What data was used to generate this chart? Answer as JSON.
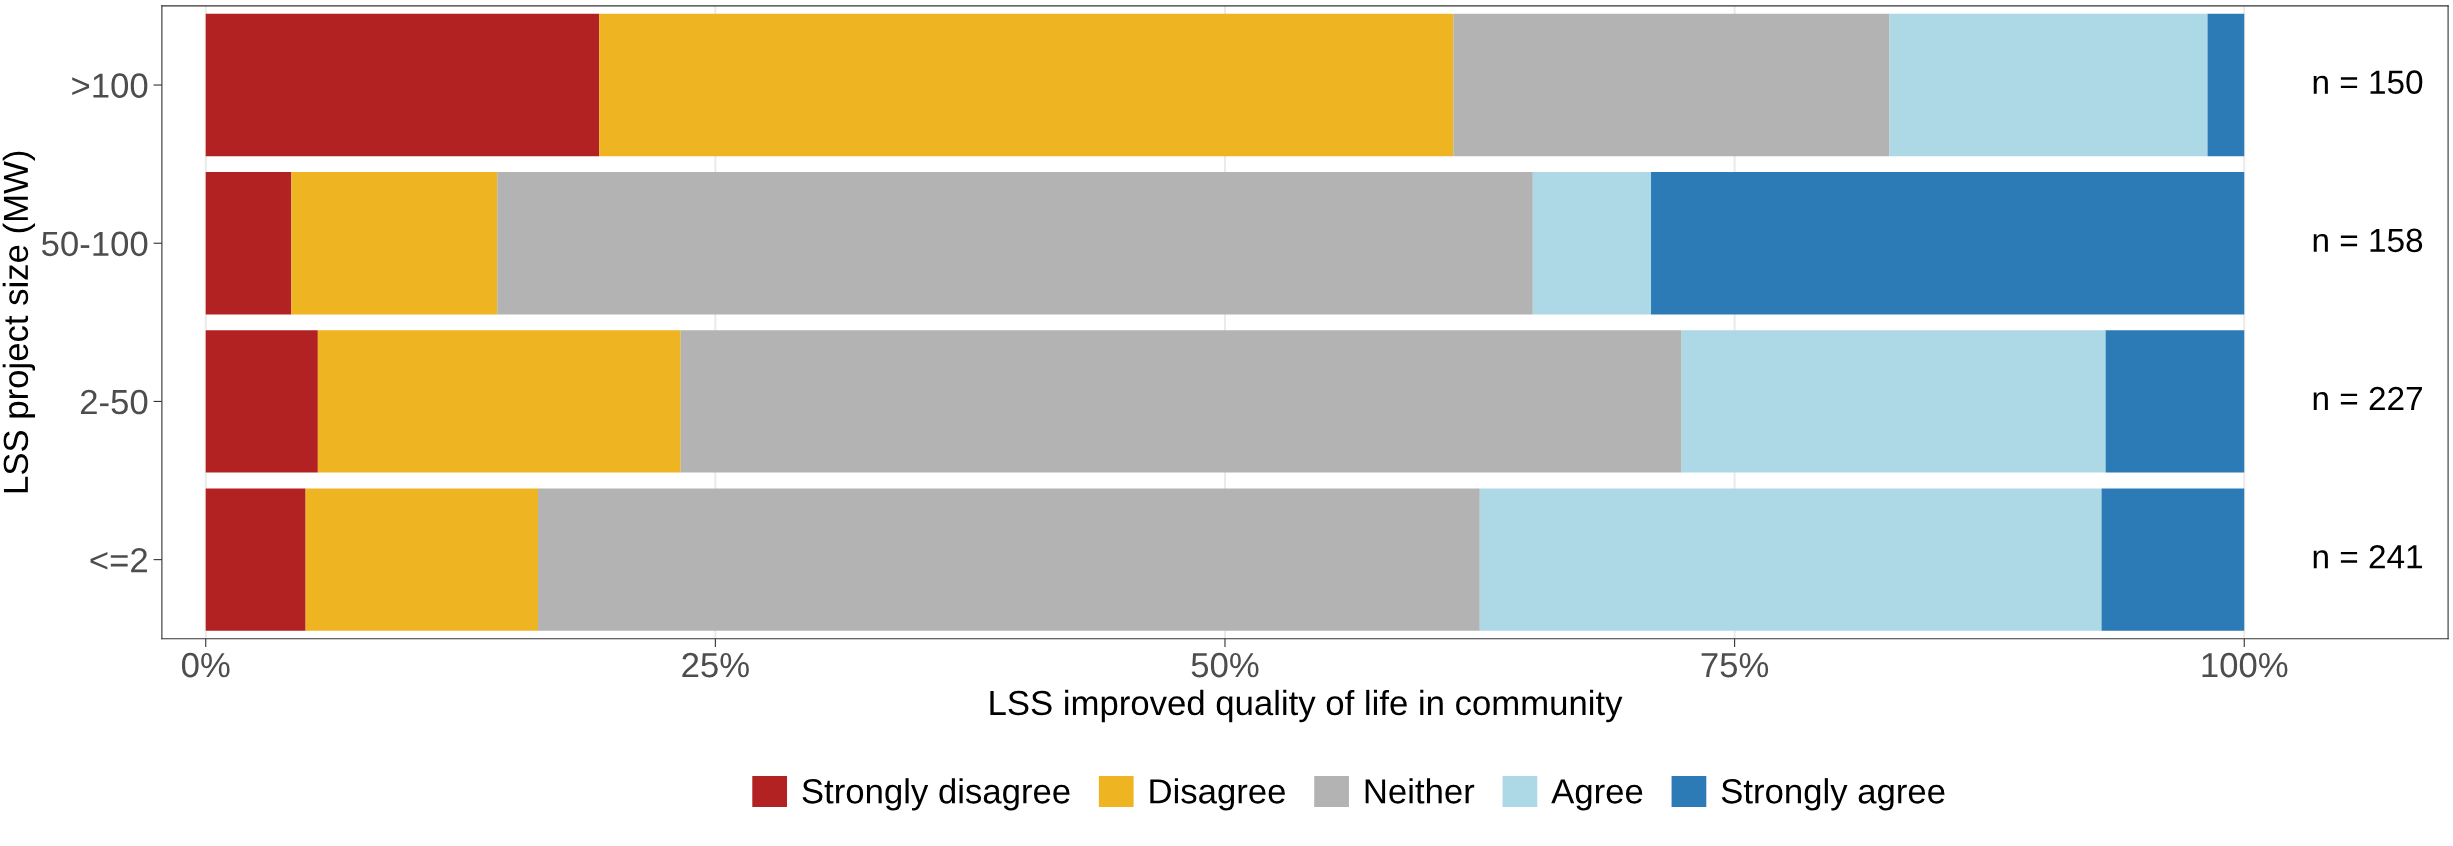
{
  "chart_data": {
    "type": "bar",
    "orientation": "horizontal",
    "stacked": true,
    "xlabel": "LSS improved quality of life in community",
    "ylabel": "LSS project size (MW)",
    "categories": [
      ">100",
      "50-100",
      "2-50",
      "<=2"
    ],
    "series": [
      {
        "name": "Strongly disagree",
        "color": "#b22222",
        "values": [
          19.3,
          4.2,
          5.5,
          4.9
        ]
      },
      {
        "name": "Disagree",
        "color": "#eeb422",
        "values": [
          41.9,
          10.1,
          17.8,
          11.4
        ]
      },
      {
        "name": "Neither",
        "color": "#b3b3b3",
        "values": [
          21.4,
          50.8,
          49.1,
          46.2
        ]
      },
      {
        "name": "Agree",
        "color": "#add8e6",
        "values": [
          15.6,
          5.8,
          20.8,
          30.5
        ]
      },
      {
        "name": "Strongly agree",
        "color": "#2c7bb6",
        "values": [
          1.8,
          29.1,
          6.8,
          7.0
        ]
      }
    ],
    "xlim": [
      -2.15,
      110
    ],
    "xticks": [
      {
        "value": 0,
        "label": "0%"
      },
      {
        "value": 25,
        "label": "25%"
      },
      {
        "value": 50,
        "label": "50%"
      },
      {
        "value": 75,
        "label": "75%"
      },
      {
        "value": 100,
        "label": "100%"
      }
    ],
    "grid": "x",
    "legend": "bottom",
    "annotations": [
      "n = 150",
      "n = 158",
      "n = 227",
      "n = 241"
    ]
  }
}
